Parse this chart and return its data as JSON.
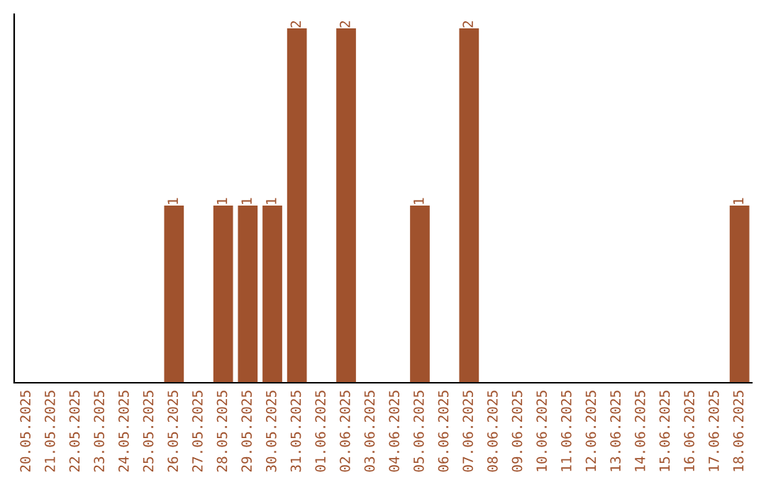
{
  "chart_data": {
    "type": "bar",
    "categories": [
      "20.05.2025",
      "21.05.2025",
      "22.05.2025",
      "23.05.2025",
      "24.05.2025",
      "25.05.2025",
      "26.05.2025",
      "27.05.2025",
      "28.05.2025",
      "29.05.2025",
      "30.05.2025",
      "31.05.2025",
      "01.06.2025",
      "02.06.2025",
      "03.06.2025",
      "04.06.2025",
      "05.06.2025",
      "06.06.2025",
      "07.06.2025",
      "08.06.2025",
      "09.06.2025",
      "10.06.2025",
      "11.06.2025",
      "12.06.2025",
      "13.06.2025",
      "14.06.2025",
      "15.06.2025",
      "16.06.2025",
      "17.06.2025",
      "18.06.2025"
    ],
    "values": [
      0,
      0,
      0,
      0,
      0,
      0,
      1,
      0,
      1,
      1,
      1,
      2,
      0,
      2,
      0,
      0,
      1,
      0,
      2,
      0,
      0,
      0,
      0,
      0,
      0,
      0,
      0,
      0,
      0,
      1
    ],
    "value_labels": [
      null,
      null,
      null,
      null,
      null,
      null,
      "1",
      null,
      "1",
      "1",
      "1",
      "2",
      null,
      "2",
      null,
      null,
      "1",
      null,
      "2",
      null,
      null,
      null,
      null,
      null,
      null,
      null,
      null,
      null,
      null,
      "1"
    ],
    "color": "#a0522d",
    "ylim": [
      0,
      2.08
    ],
    "tick_labels": "x",
    "grid": false,
    "legend": false
  }
}
